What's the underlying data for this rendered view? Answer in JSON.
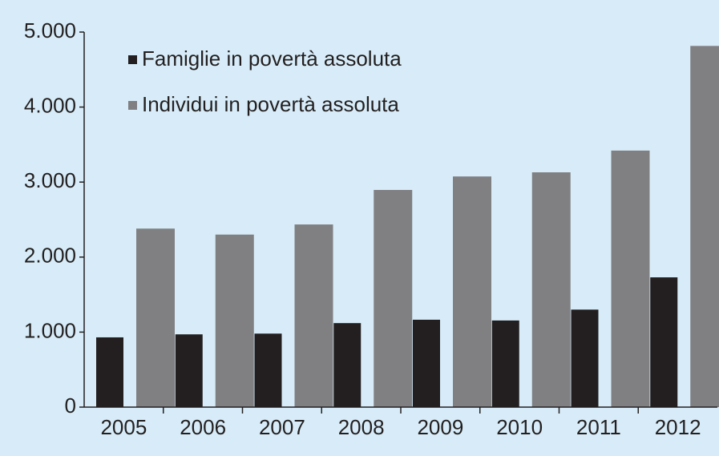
{
  "chart_data": {
    "type": "bar",
    "categories": [
      "2005",
      "2006",
      "2007",
      "2008",
      "2009",
      "2010",
      "2011",
      "2012"
    ],
    "series": [
      {
        "name": "Famiglie in povertà assoluta",
        "color": "#231f20",
        "values": [
          930,
          970,
          980,
          1120,
          1165,
          1155,
          1300,
          1730
        ]
      },
      {
        "name": "Individui in povertà assoluta",
        "color": "#808083",
        "values": [
          2380,
          2300,
          2435,
          2895,
          3075,
          3130,
          3420,
          4815
        ]
      }
    ],
    "ylim": [
      0,
      5000
    ],
    "yticks": [
      0,
      {
        "value": 1000,
        "label": "1.000"
      },
      {
        "value": 2000,
        "label": "2.000"
      },
      {
        "value": 3000,
        "label": "3.000"
      },
      {
        "value": 4000,
        "label": "4.000"
      },
      {
        "value": 5000,
        "label": "5.000"
      }
    ],
    "legend": "top-left"
  }
}
